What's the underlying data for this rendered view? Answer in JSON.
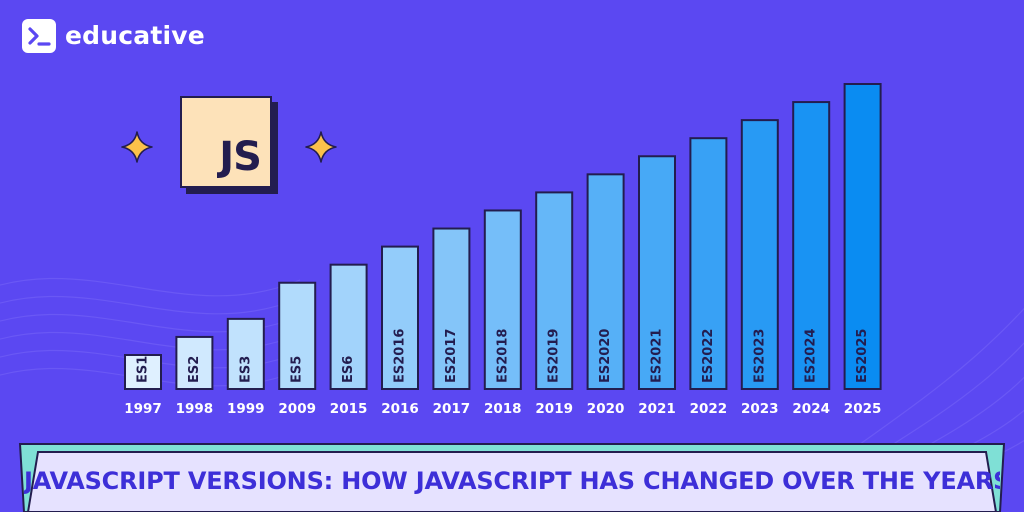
{
  "brand": {
    "name": "educative"
  },
  "badge": {
    "text": "JS"
  },
  "colors": {
    "background": "#5b48f2",
    "bar_outline": "#231d4f",
    "bar_light": "#dff0ff",
    "bar_dark": "#0a8cf2",
    "axis_text": "#ffffff",
    "title_text": "#3d2fd8",
    "banner_fill": "#e6e2ff",
    "banner_edge": "#7fe0d6",
    "badge_fill": "#fde2b9",
    "sparkle": "#fbc14a"
  },
  "icons": [
    "terminal-prompt-icon",
    "sparkle-icon"
  ],
  "chart_data": {
    "type": "bar",
    "title": "JAVASCRIPT VERSIONS: HOW JAVASCRIPT HAS CHANGED OVER THE YEARS",
    "xlabel": "",
    "ylabel": "",
    "categories": [
      "1997",
      "1998",
      "1999",
      "2009",
      "2015",
      "2016",
      "2017",
      "2018",
      "2019",
      "2020",
      "2021",
      "2022",
      "2023",
      "2024",
      "2025"
    ],
    "bar_labels": [
      "ES1",
      "ES2",
      "ES3",
      "ES5",
      "ES6",
      "ES2016",
      "ES2017",
      "ES2018",
      "ES2019",
      "ES2020",
      "ES2021",
      "ES2022",
      "ES2023",
      "ES2024",
      "ES2025"
    ],
    "values": [
      1,
      2,
      3,
      5,
      6,
      7,
      8,
      9,
      10,
      11,
      12,
      13,
      14,
      15,
      16
    ],
    "ylim": [
      0,
      16
    ],
    "grid": false,
    "legend": "none"
  }
}
